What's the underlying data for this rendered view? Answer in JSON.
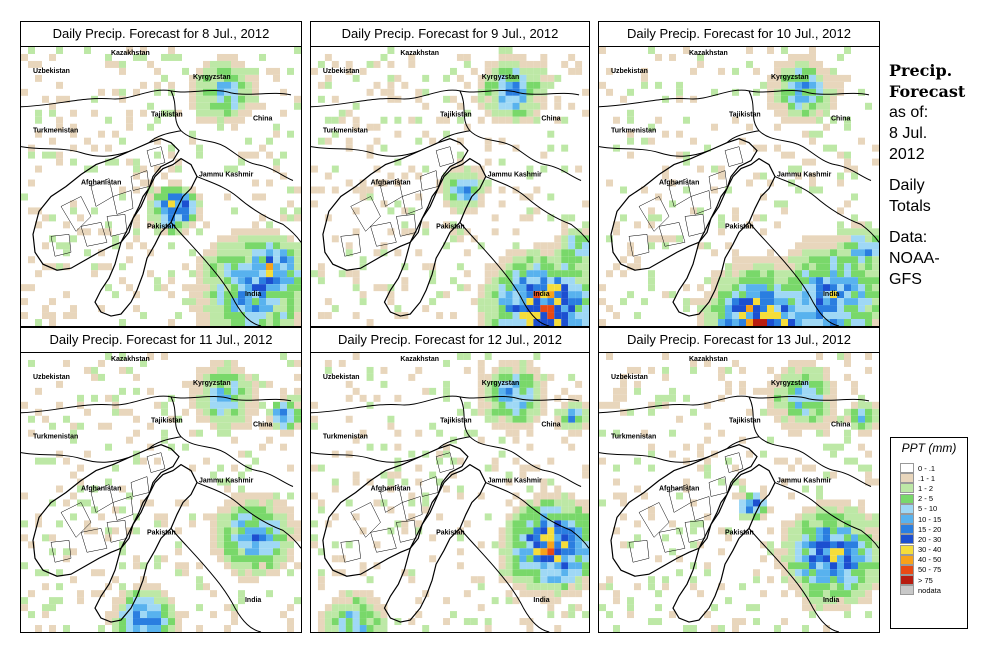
{
  "panels": [
    {
      "title": "Daily Precip. Forecast for  8 Jul., 2012"
    },
    {
      "title": "Daily Precip. Forecast for  9 Jul., 2012"
    },
    {
      "title": "Daily Precip. Forecast for  10 Jul., 2012"
    },
    {
      "title": "Daily Precip. Forecast for  11 Jul., 2012"
    },
    {
      "title": "Daily Precip. Forecast for  12 Jul., 2012"
    },
    {
      "title": "Daily Precip. Forecast for  13 Jul., 2012"
    }
  ],
  "map_labels": {
    "uzbekistan": "Uzbekistan",
    "kazakhstan": "Kazakhstan",
    "kyrgyzstan": "Kyrgyzstan",
    "tajikistan": "Tajikistan",
    "china": "China",
    "turkmenistan": "Turkmenistan",
    "afghanistan": "Afghanistan",
    "jammu_kashmir": "Jammu Kashmir",
    "pakistan": "Pakistan",
    "india": "India"
  },
  "side_info": {
    "title_line1": "Precip.",
    "title_line2": "Forecast",
    "asof_line1": "as of:",
    "asof_line2": "8 Jul.",
    "asof_line3": "2012",
    "totals_line1": "Daily",
    "totals_line2": "Totals",
    "data_line1": "Data:",
    "data_line2": "NOAA-",
    "data_line3": "GFS"
  },
  "legend": {
    "title": "PPT (mm)",
    "items": [
      {
        "label": "0 - .1",
        "color": "#ffffff"
      },
      {
        "label": ".1 - 1",
        "color": "#e8d6bc"
      },
      {
        "label": "1 - 2",
        "color": "#bde8a6"
      },
      {
        "label": "2 - 5",
        "color": "#79d86a"
      },
      {
        "label": "5 - 10",
        "color": "#9fd8f5"
      },
      {
        "label": "10 - 15",
        "color": "#58b2ee"
      },
      {
        "label": "15 - 20",
        "color": "#2a7ee0"
      },
      {
        "label": "20 - 30",
        "color": "#1c4fd0"
      },
      {
        "label": "30 - 40",
        "color": "#f5dd3a"
      },
      {
        "label": "40 - 50",
        "color": "#f7a21a"
      },
      {
        "label": "50 - 75",
        "color": "#e84a14"
      },
      {
        "label": "> 75",
        "color": "#b81c10"
      },
      {
        "label": "nodata",
        "color": "#c8c8c8"
      }
    ]
  }
}
